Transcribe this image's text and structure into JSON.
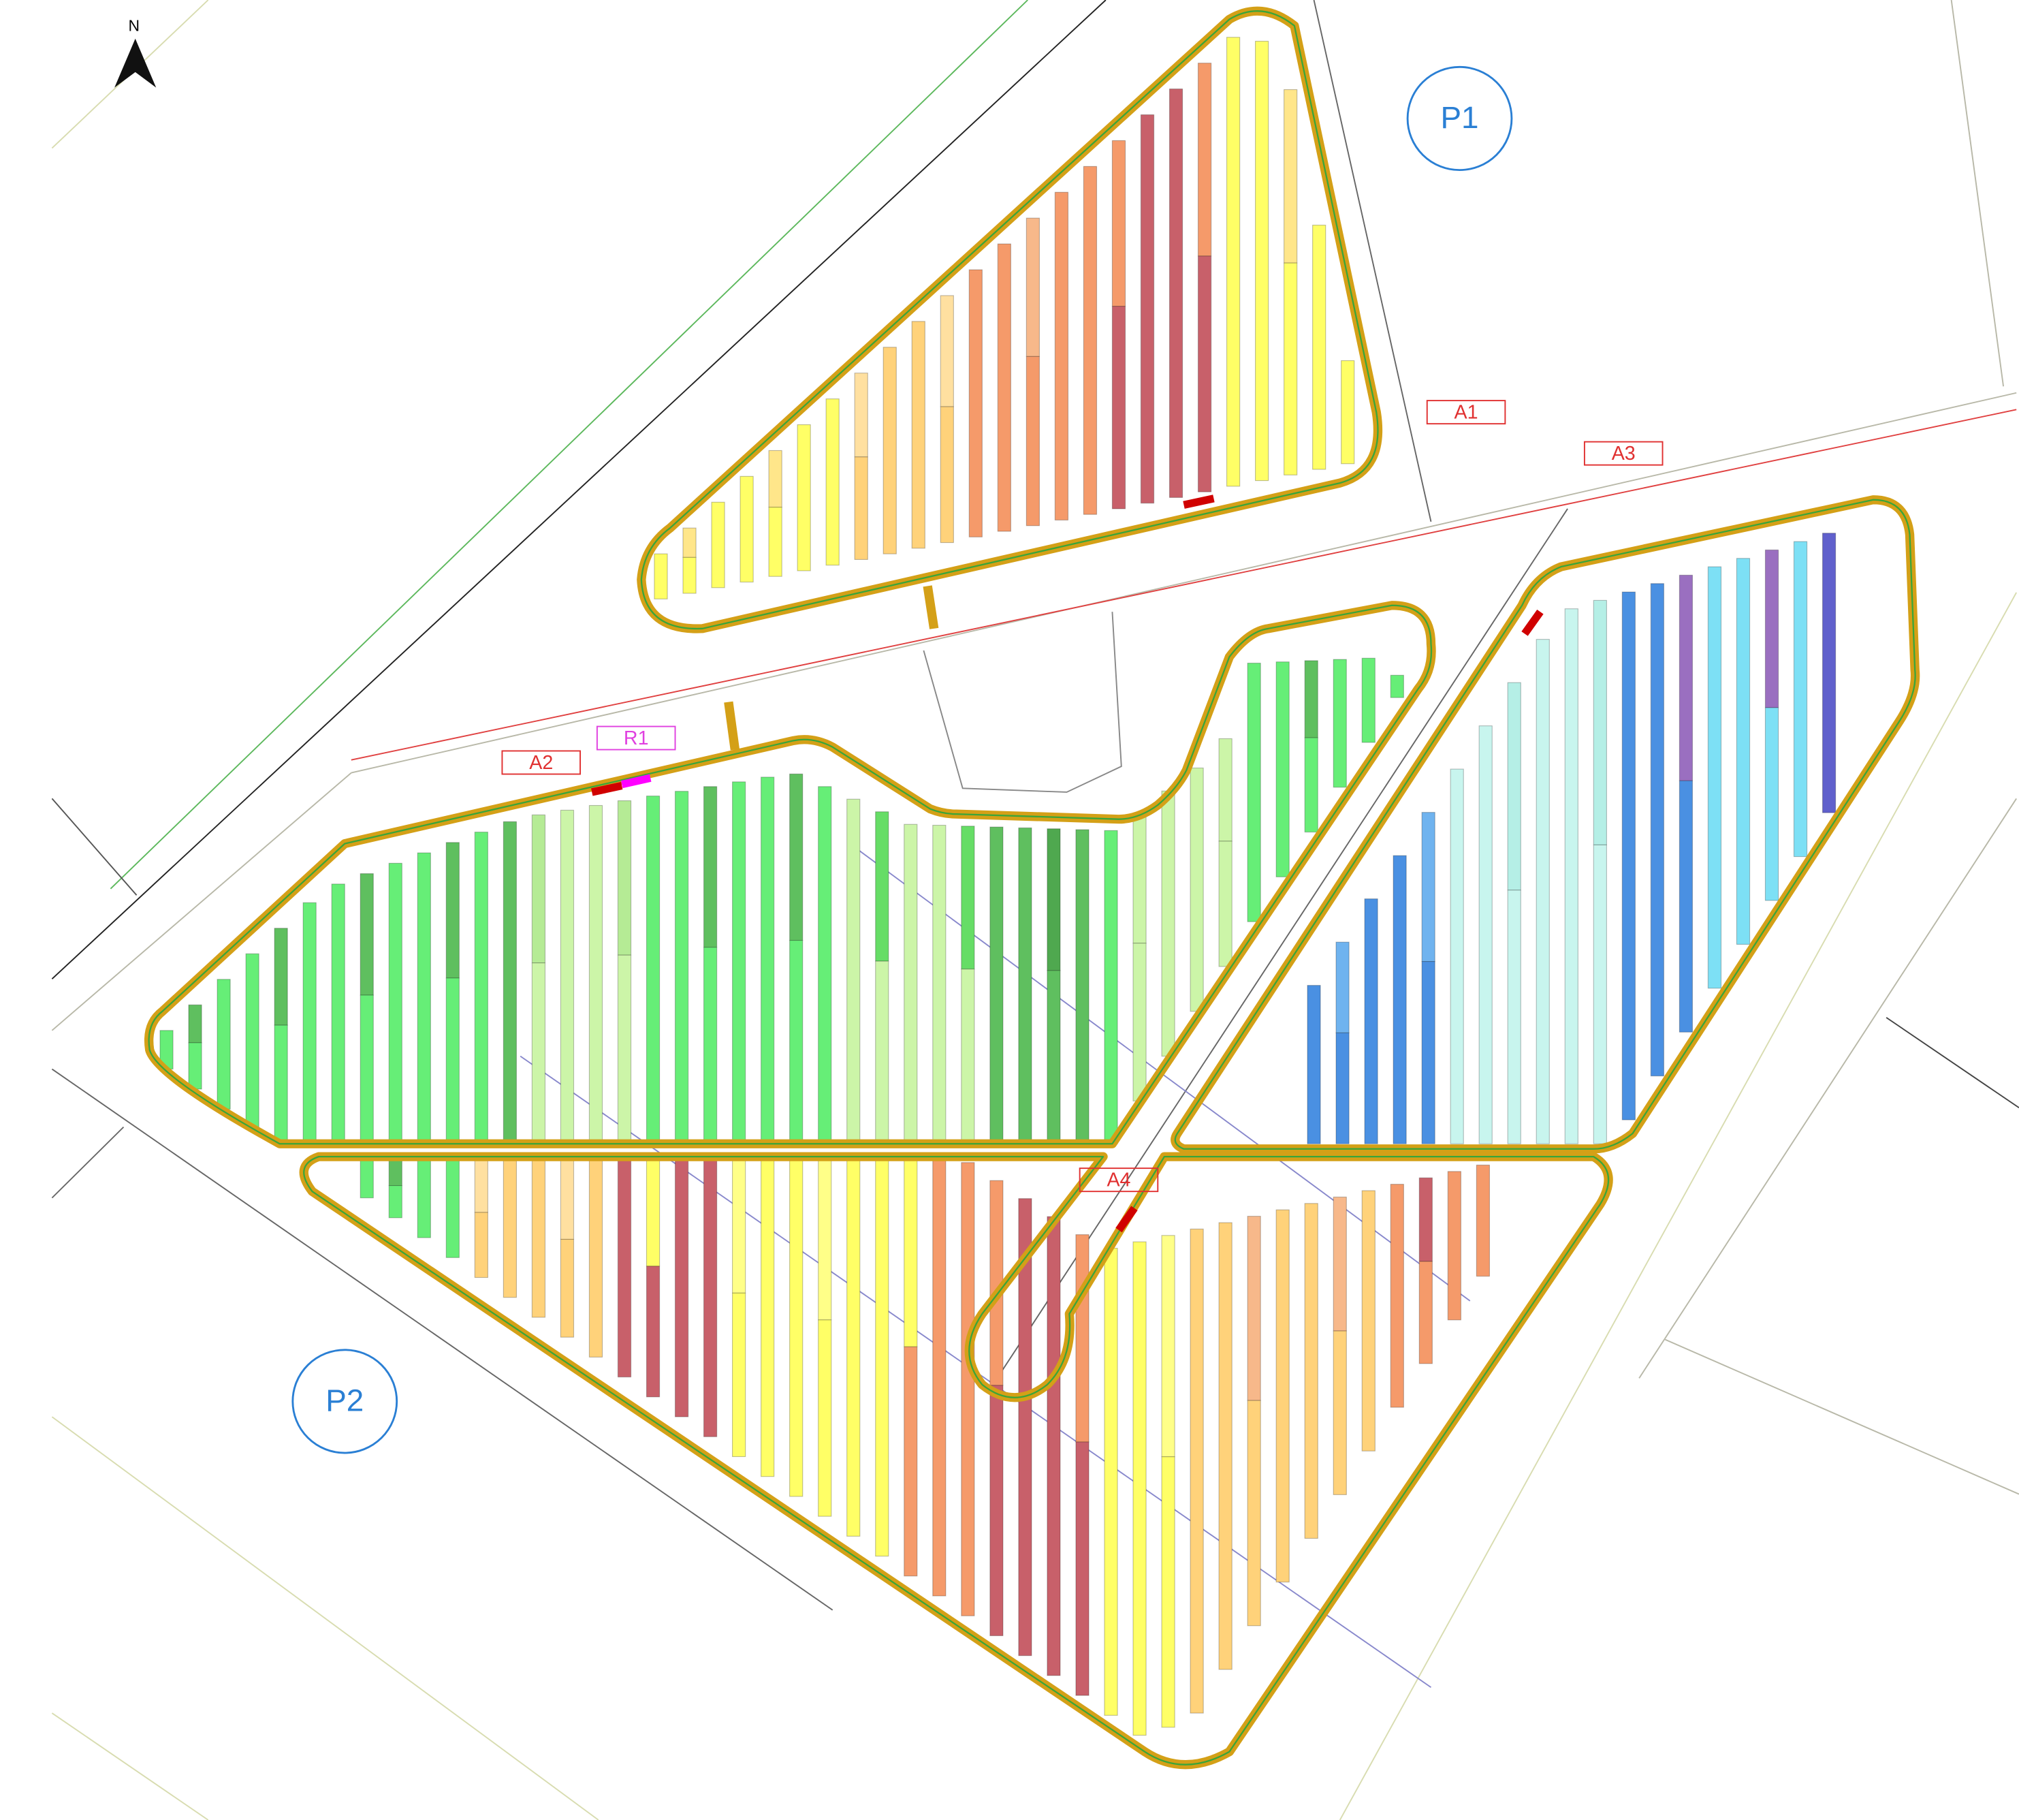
{
  "north": "N",
  "zones": {
    "p1": "P1",
    "p2": "P2"
  },
  "labels": {
    "a1": "A1",
    "a2": "A2",
    "a3": "A3",
    "a4": "A4",
    "r1": "R1"
  }
}
